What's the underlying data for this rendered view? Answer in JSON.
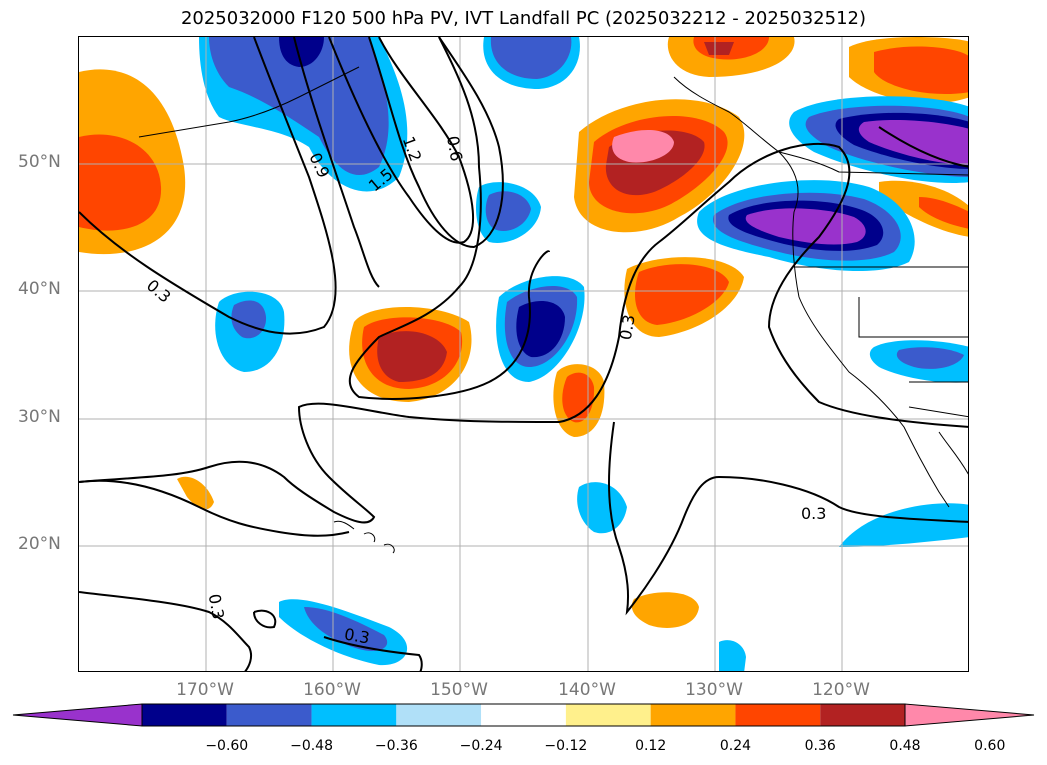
{
  "title": "2025032000 F120 500 hPa PV, IVT Landfall PC (2025032212 - 2025032512)",
  "map": {
    "lat_labels": [
      "50°N",
      "40°N",
      "30°N",
      "20°N"
    ],
    "lon_labels": [
      "170°W",
      "160°W",
      "150°W",
      "140°W",
      "130°W",
      "120°W"
    ],
    "extent": {
      "lon_min": -180,
      "lon_max": -110,
      "lat_min": 10,
      "lat_max": 60
    },
    "contour_labels": [
      "0.3",
      "0.9",
      "1.5",
      "1.2",
      "0.6",
      "0.3",
      "0.3",
      "0.3",
      "0.3"
    ],
    "contour_line_color": "#000000",
    "gridline_color": "#b0b0b0"
  },
  "colorbar": {
    "colors": [
      "#9932cc",
      "#00008b",
      "#3b5bcc",
      "#00bfff",
      "#b0e0f8",
      "#ffffff",
      "#fff08c",
      "#ffa500",
      "#ff4500",
      "#b22222",
      "#ff88aa"
    ],
    "tick_labels": [
      "−0.60",
      "−0.48",
      "−0.36",
      "−0.24",
      "−0.12",
      "0.12",
      "0.24",
      "0.36",
      "0.48",
      "0.60"
    ],
    "extend": "both"
  }
}
